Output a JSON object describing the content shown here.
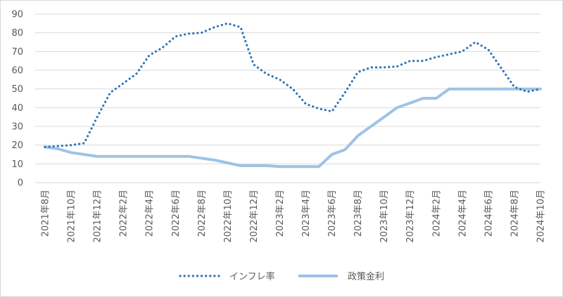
{
  "chart_data": {
    "type": "line",
    "title": "",
    "xlabel": "",
    "ylabel": "",
    "ylim": [
      0,
      90
    ],
    "yticks": [
      0,
      10,
      20,
      30,
      40,
      50,
      60,
      70,
      80,
      90
    ],
    "grid": "horizontal",
    "legend_position": "bottom",
    "x": [
      "2021年8月",
      "2021年9月",
      "2021年10月",
      "2021年11月",
      "2021年12月",
      "2022年1月",
      "2022年2月",
      "2022年3月",
      "2022年4月",
      "2022年5月",
      "2022年6月",
      "2022年7月",
      "2022年8月",
      "2022年9月",
      "2022年10月",
      "2022年11月",
      "2022年12月",
      "2023年1月",
      "2023年2月",
      "2023年3月",
      "2023年4月",
      "2023年5月",
      "2023年6月",
      "2023年7月",
      "2023年8月",
      "2023年9月",
      "2023年10月",
      "2023年11月",
      "2023年12月",
      "2024年1月",
      "2024年2月",
      "2024年3月",
      "2024年4月",
      "2024年5月",
      "2024年6月",
      "2024年7月",
      "2024年8月",
      "2024年9月",
      "2024年10月"
    ],
    "x_tick_labels": [
      "2021年8月",
      "2021年10月",
      "2021年12月",
      "2022年2月",
      "2022年4月",
      "2022年6月",
      "2022年8月",
      "2022年10月",
      "2022年12月",
      "2023年2月",
      "2023年4月",
      "2023年6月",
      "2023年8月",
      "2023年10月",
      "2023年12月",
      "2024年2月",
      "2024年4月",
      "2024年6月",
      "2024年8月",
      "2024年10月"
    ],
    "series": [
      {
        "name": "インフレ率",
        "color": "#2e75b6",
        "style": "dotted",
        "values": [
          19,
          19.5,
          20,
          21,
          35,
          48,
          53,
          58,
          68,
          72,
          78,
          79.5,
          80,
          83,
          85,
          83,
          63,
          58,
          55,
          50,
          42,
          39.5,
          38,
          48,
          59,
          61.5,
          61.5,
          62,
          65,
          65,
          67,
          68.5,
          70,
          75,
          71,
          61,
          51,
          48.5,
          50
        ]
      },
      {
        "name": "政策金利",
        "color": "#9dc3e6",
        "style": "solid",
        "values": [
          19,
          18,
          16,
          15,
          14,
          14,
          14,
          14,
          14,
          14,
          14,
          14,
          13,
          12,
          10.5,
          9,
          9,
          9,
          8.5,
          8.5,
          8.5,
          8.5,
          15,
          17.5,
          25,
          30,
          35,
          40,
          42.5,
          45,
          45,
          50,
          50,
          50,
          50,
          50,
          50,
          50,
          50
        ]
      }
    ]
  }
}
